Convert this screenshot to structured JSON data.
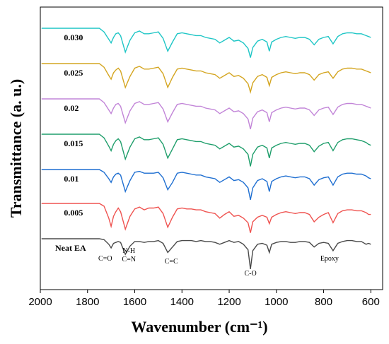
{
  "chart_data": {
    "type": "line",
    "title": "",
    "xlabel": "Wavenumber (cm⁻¹)",
    "ylabel": "Transmittance (a. u.)",
    "xlim": [
      2000,
      550
    ],
    "x_ticks": [
      2000,
      1800,
      1600,
      1400,
      1200,
      1000,
      800,
      600
    ],
    "x_tick_labels": [
      "2000",
      "1800",
      "1600",
      "1400",
      "1200",
      "1000",
      "800",
      "600"
    ],
    "y_ticks_shown": false,
    "grid": false,
    "legend": "none",
    "x": [
      1750,
      1730,
      1710,
      1700,
      1690,
      1680,
      1670,
      1660,
      1640,
      1620,
      1600,
      1580,
      1560,
      1540,
      1520,
      1500,
      1480,
      1460,
      1440,
      1420,
      1400,
      1380,
      1360,
      1340,
      1320,
      1300,
      1280,
      1260,
      1240,
      1220,
      1200,
      1180,
      1160,
      1140,
      1120,
      1110,
      1100,
      1080,
      1060,
      1040,
      1030,
      1020,
      1000,
      980,
      960,
      940,
      920,
      900,
      880,
      860,
      840,
      820,
      800,
      780,
      760,
      740,
      720,
      700,
      680,
      660,
      640,
      620,
      610,
      600
    ],
    "series": [
      {
        "name": "Neat EA",
        "color": "#4a4a4a",
        "offset": 0,
        "values": [
          0,
          -0.1,
          -0.6,
          -1.0,
          -0.5,
          -0.4,
          -0.3,
          -0.4,
          -1.7,
          -0.8,
          -0.3,
          -0.3,
          -0.4,
          -0.3,
          -0.3,
          -0.2,
          -0.5,
          -1.5,
          -0.9,
          -0.3,
          -0.2,
          -0.2,
          -0.2,
          -0.3,
          -0.2,
          -0.3,
          -0.3,
          -0.4,
          -0.6,
          -0.4,
          -0.2,
          -0.4,
          -0.3,
          -0.6,
          -1.2,
          -3.3,
          -1.3,
          -0.6,
          -0.5,
          -0.7,
          -1.5,
          -0.6,
          -0.4,
          -0.3,
          -0.3,
          -0.4,
          -0.4,
          -0.3,
          -0.3,
          -0.4,
          -0.9,
          -0.5,
          -0.4,
          -0.5,
          -1.3,
          -0.5,
          -0.3,
          -0.2,
          -0.2,
          -0.3,
          -0.3,
          -0.6,
          -0.5,
          -0.6
        ]
      },
      {
        "name": "0.005",
        "color": "#ef5350",
        "offset": 1,
        "values": [
          0,
          -0.3,
          -1.6,
          -2.5,
          -1.4,
          -0.9,
          -0.5,
          -0.9,
          -2.8,
          -1.4,
          -0.6,
          -0.4,
          -0.7,
          -0.5,
          -0.5,
          -0.4,
          -1.1,
          -2.6,
          -1.5,
          -0.6,
          -0.5,
          -0.6,
          -0.6,
          -0.7,
          -0.7,
          -0.9,
          -1.0,
          -1.1,
          -1.6,
          -1.2,
          -0.9,
          -1.4,
          -1.3,
          -1.6,
          -2.1,
          -3.2,
          -2.0,
          -1.5,
          -1.3,
          -1.5,
          -2.2,
          -1.5,
          -1.2,
          -1.0,
          -0.9,
          -1.0,
          -1.1,
          -1.0,
          -1.0,
          -1.2,
          -2.0,
          -1.5,
          -1.2,
          -1.0,
          -2.1,
          -1.1,
          -0.8,
          -0.7,
          -0.7,
          -0.8,
          -0.8,
          -1.0,
          -1.2,
          -1.2
        ]
      },
      {
        "name": "0.01",
        "color": "#1f6fd1",
        "offset": 2,
        "values": [
          0,
          -0.3,
          -1.0,
          -1.4,
          -0.8,
          -0.5,
          -0.4,
          -0.6,
          -2.4,
          -1.2,
          -0.3,
          -0.2,
          -0.4,
          -0.4,
          -0.4,
          -0.3,
          -0.9,
          -2.2,
          -1.4,
          -0.4,
          -0.3,
          -0.4,
          -0.5,
          -0.6,
          -0.6,
          -0.8,
          -0.9,
          -1.0,
          -1.4,
          -1.1,
          -0.8,
          -1.2,
          -1.1,
          -1.4,
          -2.0,
          -3.3,
          -2.0,
          -1.2,
          -1.0,
          -1.3,
          -2.4,
          -1.3,
          -1.0,
          -0.8,
          -0.7,
          -0.8,
          -0.9,
          -0.8,
          -0.8,
          -1.0,
          -1.7,
          -1.1,
          -0.9,
          -0.8,
          -1.7,
          -0.8,
          -0.5,
          -0.4,
          -0.4,
          -0.5,
          -0.5,
          -0.7,
          -0.9,
          -1.0
        ]
      },
      {
        "name": "0.015",
        "color": "#1f9e6b",
        "offset": 3,
        "values": [
          0,
          -0.4,
          -1.3,
          -1.8,
          -1.1,
          -0.7,
          -0.5,
          -0.8,
          -2.7,
          -1.4,
          -0.5,
          -0.3,
          -0.6,
          -0.6,
          -0.5,
          -0.4,
          -1.1,
          -2.6,
          -1.6,
          -0.6,
          -0.5,
          -0.6,
          -0.7,
          -0.8,
          -0.8,
          -1.0,
          -1.1,
          -1.2,
          -1.6,
          -1.3,
          -1.0,
          -1.4,
          -1.3,
          -1.6,
          -2.2,
          -3.5,
          -2.2,
          -1.4,
          -1.2,
          -1.5,
          -2.6,
          -1.5,
          -1.2,
          -1.0,
          -0.9,
          -1.0,
          -1.1,
          -1.0,
          -1.0,
          -1.2,
          -1.9,
          -1.3,
          -1.0,
          -0.9,
          -1.8,
          -0.9,
          -0.6,
          -0.5,
          -0.5,
          -0.6,
          -0.7,
          -0.9,
          -1.1,
          -1.2
        ]
      },
      {
        "name": "0.02",
        "color": "#c285d8",
        "offset": 4,
        "values": [
          0,
          -0.4,
          -1.2,
          -1.6,
          -1.0,
          -0.6,
          -0.5,
          -0.8,
          -2.6,
          -1.3,
          -0.5,
          -0.3,
          -0.6,
          -0.6,
          -0.5,
          -0.4,
          -1.1,
          -2.5,
          -1.5,
          -0.6,
          -0.5,
          -0.6,
          -0.7,
          -0.8,
          -0.8,
          -1.0,
          -1.1,
          -1.2,
          -1.6,
          -1.3,
          -1.0,
          -1.4,
          -1.3,
          -1.6,
          -2.2,
          -3.3,
          -2.1,
          -1.4,
          -1.2,
          -1.5,
          -2.5,
          -1.5,
          -1.2,
          -1.0,
          -0.9,
          -1.0,
          -1.1,
          -1.0,
          -1.0,
          -1.2,
          -1.8,
          -1.2,
          -1.0,
          -0.9,
          -1.7,
          -0.9,
          -0.6,
          -0.5,
          -0.5,
          -0.6,
          -0.6,
          -0.8,
          -0.9,
          -1.0
        ]
      },
      {
        "name": "0.025",
        "color": "#d4a520",
        "offset": 5,
        "values": [
          0,
          -0.4,
          -1.3,
          -1.7,
          -1.0,
          -0.7,
          -0.5,
          -0.8,
          -2.6,
          -1.4,
          -0.5,
          -0.3,
          -0.6,
          -0.6,
          -0.5,
          -0.4,
          -1.1,
          -2.6,
          -1.5,
          -0.6,
          -0.5,
          -0.6,
          -0.7,
          -0.8,
          -0.8,
          -1.0,
          -1.1,
          -1.2,
          -1.6,
          -1.3,
          -1.0,
          -1.4,
          -1.3,
          -1.6,
          -2.2,
          -3.1,
          -2.1,
          -1.4,
          -1.2,
          -1.5,
          -2.4,
          -1.5,
          -1.2,
          -1.0,
          -0.9,
          -1.0,
          -1.1,
          -1.0,
          -1.0,
          -1.2,
          -1.8,
          -1.2,
          -1.0,
          -0.9,
          -1.6,
          -0.9,
          -0.6,
          -0.5,
          -0.5,
          -0.6,
          -0.6,
          -0.8,
          -0.9,
          -1.0
        ]
      },
      {
        "name": "0.030",
        "color": "#1fc6c6",
        "offset": 6,
        "values": [
          0,
          -0.4,
          -1.2,
          -1.6,
          -1.0,
          -0.6,
          -0.5,
          -0.8,
          -2.6,
          -1.3,
          -0.5,
          -0.3,
          -0.6,
          -0.6,
          -0.5,
          -0.4,
          -1.1,
          -2.5,
          -1.5,
          -0.6,
          -0.5,
          -0.6,
          -0.7,
          -0.8,
          -0.8,
          -1.0,
          -1.1,
          -1.2,
          -1.6,
          -1.3,
          -1.0,
          -1.4,
          -1.3,
          -1.6,
          -2.2,
          -3.2,
          -2.1,
          -1.4,
          -1.2,
          -1.5,
          -2.5,
          -1.5,
          -1.2,
          -1.0,
          -0.9,
          -1.0,
          -1.1,
          -1.0,
          -1.0,
          -1.2,
          -1.8,
          -1.2,
          -1.0,
          -0.9,
          -1.7,
          -0.9,
          -0.6,
          -0.5,
          -0.5,
          -0.6,
          -0.6,
          -0.8,
          -0.9,
          -1.0
        ]
      }
    ],
    "annotations": [
      {
        "text": "C=O",
        "x": 1725
      },
      {
        "text": "N-H",
        "x": 1625
      },
      {
        "text": "C=N",
        "x": 1625
      },
      {
        "text": "C=C",
        "x": 1445
      },
      {
        "text": "C-O",
        "x": 1110
      },
      {
        "text": "Epoxy",
        "x": 775
      }
    ]
  }
}
